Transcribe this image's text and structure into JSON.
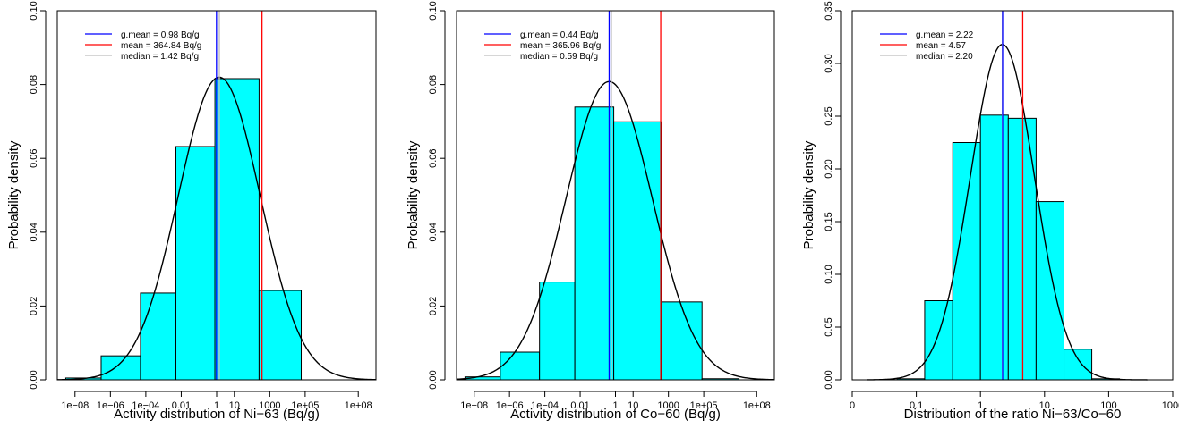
{
  "chart_data": [
    {
      "type": "bar",
      "xlabel": "Activity distribution of Ni−63 (Bq/g)",
      "ylabel": "Probability density",
      "x_scale": "log10",
      "xlim": [
        1e-09,
        1000000000.0
      ],
      "ylim": [
        0,
        0.1
      ],
      "x_ticks": [
        1e-08,
        1e-06,
        0.0001,
        0.01,
        1,
        10,
        1000,
        100000.0,
        100000000.0
      ],
      "x_tick_labels": [
        "1e−08",
        "1e−06",
        "1e−04",
        "0.01",
        "1",
        "10",
        "1000",
        "1e+05",
        "1e+08"
      ],
      "y_ticks": [
        0.0,
        0.02,
        0.04,
        0.06,
        0.08,
        0.1
      ],
      "y_tick_labels": [
        "0.00",
        "0.02",
        "0.04",
        "0.06",
        "0.08",
        "0.10"
      ],
      "bar_color": "#00ffff",
      "bins": [
        {
          "x0": 3e-09,
          "x1": 3e-07,
          "density": 0.0005
        },
        {
          "x0": 3e-07,
          "x1": 5e-05,
          "density": 0.0065
        },
        {
          "x0": 5e-05,
          "x1": 0.005,
          "density": 0.0235
        },
        {
          "x0": 0.005,
          "x1": 0.8,
          "density": 0.0632
        },
        {
          "x0": 0.8,
          "x1": 250,
          "density": 0.0816
        },
        {
          "x0": 250,
          "x1": 60000,
          "density": 0.0242
        }
      ],
      "fit_curve": {
        "type": "lognormal",
        "center": 1.4,
        "sigma_decades": 2.32,
        "peak": 0.082,
        "x_from": 1e-09,
        "x_to": 1000000000.0,
        "color": "#000000"
      },
      "vertical_lines": [
        {
          "label": "g.mean = 0.98 Bq/g",
          "x": 0.98,
          "color": "#0000ff"
        },
        {
          "label": "mean = 364.84 Bq/g",
          "x": 364.84,
          "color": "#ff0000"
        },
        {
          "label": "median = 1.42 Bq/g",
          "x": 1.42,
          "color": "#bebebe"
        }
      ],
      "legend_position": "top-left"
    },
    {
      "type": "bar",
      "xlabel": "Activity distribution of Co−60 (Bq/g)",
      "ylabel": "Probability density",
      "x_scale": "log10",
      "xlim": [
        1e-09,
        1000000000.0
      ],
      "ylim": [
        0,
        0.1
      ],
      "x_ticks": [
        1e-08,
        1e-06,
        0.0001,
        0.01,
        1,
        10,
        1000,
        100000.0,
        100000000.0
      ],
      "x_tick_labels": [
        "1e−08",
        "1e−06",
        "1e−04",
        "0.01",
        "1",
        "10",
        "1000",
        "1e+05",
        "1e+08"
      ],
      "y_ticks": [
        0.0,
        0.02,
        0.04,
        0.06,
        0.08,
        0.1
      ],
      "y_tick_labels": [
        "0.00",
        "0.02",
        "0.04",
        "0.06",
        "0.08",
        "0.10"
      ],
      "bar_color": "#00ffff",
      "bins": [
        {
          "x0": 3e-09,
          "x1": 3e-07,
          "density": 0.0008
        },
        {
          "x0": 3e-07,
          "x1": 5e-05,
          "density": 0.0075
        },
        {
          "x0": 5e-05,
          "x1": 0.005,
          "density": 0.0265
        },
        {
          "x0": 0.005,
          "x1": 0.8,
          "density": 0.0739
        },
        {
          "x0": 0.8,
          "x1": 400,
          "density": 0.0699
        },
        {
          "x0": 400,
          "x1": 80000,
          "density": 0.0211
        },
        {
          "x0": 80000,
          "x1": 10000000.0,
          "density": 0.0003
        }
      ],
      "fit_curve": {
        "type": "lognormal",
        "center": 0.44,
        "sigma_decades": 2.45,
        "peak": 0.0808,
        "x_from": 1e-09,
        "x_to": 1000000000.0,
        "color": "#000000"
      },
      "vertical_lines": [
        {
          "label": "g.mean = 0.44 Bq/g",
          "x": 0.44,
          "color": "#0000ff"
        },
        {
          "label": "mean = 365.96 Bq/g",
          "x": 365.96,
          "color": "#ff0000"
        },
        {
          "label": "median = 0.59 Bq/g",
          "x": 0.59,
          "color": "#bebebe"
        }
      ],
      "legend_position": "top-left"
    },
    {
      "type": "bar",
      "xlabel": "Distribution of the ratio Ni−63/Co−60",
      "ylabel": "Probability density",
      "x_scale": "log10",
      "xlim": [
        0.01,
        1000
      ],
      "ylim": [
        0,
        0.35
      ],
      "x_ticks": [
        0.01,
        0.1,
        1,
        10,
        100,
        1000
      ],
      "x_tick_labels": [
        "0",
        "0.1",
        "1",
        "10",
        "100",
        "1000"
      ],
      "y_ticks": [
        0.0,
        0.05,
        0.1,
        0.15,
        0.2,
        0.25,
        0.3,
        0.35
      ],
      "y_tick_labels": [
        "0.00",
        "0.05",
        "0.10",
        "0.15",
        "0.20",
        "0.25",
        "0.30",
        "0.35"
      ],
      "bar_color": "#00ffff",
      "bins": [
        {
          "x0": 0.05,
          "x1": 0.135,
          "density": 0.001
        },
        {
          "x0": 0.135,
          "x1": 0.37,
          "density": 0.075
        },
        {
          "x0": 0.37,
          "x1": 1.0,
          "density": 0.225
        },
        {
          "x0": 1.0,
          "x1": 2.72,
          "density": 0.251
        },
        {
          "x0": 2.72,
          "x1": 7.39,
          "density": 0.248
        },
        {
          "x0": 7.39,
          "x1": 20.1,
          "density": 0.169
        },
        {
          "x0": 20.1,
          "x1": 54.6,
          "density": 0.029
        },
        {
          "x0": 54.6,
          "x1": 148,
          "density": 0.001
        }
      ],
      "fit_curve": {
        "type": "lognormal",
        "center": 2.2,
        "sigma_decades": 0.5,
        "peak": 0.318,
        "x_from": 0.017,
        "x_to": 400,
        "color": "#000000"
      },
      "vertical_lines": [
        {
          "label": "g.mean = 2.22",
          "x": 2.22,
          "color": "#0000ff"
        },
        {
          "label": "mean = 4.57",
          "x": 4.57,
          "color": "#ff0000"
        },
        {
          "label": "median = 2.20",
          "x": 2.2,
          "color": "#bebebe"
        }
      ],
      "legend_position": "top-left"
    }
  ]
}
